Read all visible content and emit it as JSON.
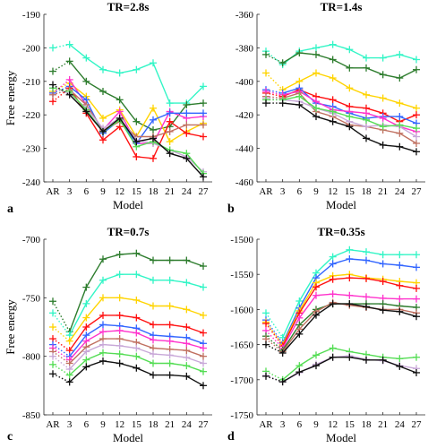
{
  "figure": {
    "title": "",
    "caption": ""
  },
  "chart_data": [
    {
      "type": "line",
      "panel_label": "a",
      "title": "TR=2.8s",
      "xlabel": "Model",
      "ylabel": "Free energy",
      "categories": [
        "AR",
        "3",
        "6",
        "9",
        "12",
        "15",
        "18",
        "21",
        "24",
        "27"
      ],
      "ylim": [
        -240,
        -190
      ],
      "yticks": [
        -240,
        -230,
        -220,
        -210,
        -200,
        -190
      ],
      "grid": false,
      "legend": "none",
      "ar_link": "dotted",
      "series": [
        {
          "color": "#33f5c6",
          "values": [
            -200,
            -199,
            -203,
            -206.5,
            -207.5,
            -206.5,
            -204.5,
            -216.5,
            -216.5,
            -211.5
          ]
        },
        {
          "color": "#2e7d2e",
          "values": [
            -207,
            -204,
            -210,
            -213,
            -215.5,
            -222,
            -224.5,
            -223.5,
            -217,
            -216.5
          ]
        },
        {
          "color": "#ffd400",
          "values": [
            -213,
            -210.5,
            -214.5,
            -221,
            -218.5,
            -226.5,
            -218,
            -228,
            -225,
            -222.5
          ]
        },
        {
          "color": "#ff33cc",
          "values": [
            -213.5,
            -209.5,
            -217,
            -224.5,
            -219,
            -228.5,
            -228.5,
            -219,
            -221,
            -220.5
          ]
        },
        {
          "color": "#3366ff",
          "values": [
            -213.5,
            -211.5,
            -215.5,
            -225.5,
            -221.5,
            -228.5,
            -221.5,
            -219.5,
            -219.5,
            -219.5
          ]
        },
        {
          "color": "#ff1111",
          "values": [
            -216,
            -212,
            -219.5,
            -227.5,
            -223.5,
            -232.5,
            -233,
            -222,
            -225.5,
            -226.5
          ]
        },
        {
          "color": "#c07060",
          "values": [
            -214,
            -212.5,
            -217,
            -224.5,
            -222,
            -226.5,
            -226.5,
            -225,
            -223,
            -223
          ]
        },
        {
          "color": "#c8a8d8",
          "values": [
            -212,
            -213.5,
            -218,
            -224,
            -221,
            -227.5,
            -228.5,
            -230.5,
            -232.5,
            -237
          ]
        },
        {
          "color": "#55dd55",
          "values": [
            -212,
            -213,
            -218.5,
            -225,
            -221.5,
            -229.5,
            -228,
            -230.5,
            -231.5,
            -237.5
          ]
        },
        {
          "color": "#111111",
          "values": [
            -211,
            -214,
            -219,
            -225,
            -221,
            -228,
            -227,
            -231.5,
            -233,
            -238.5
          ]
        }
      ]
    },
    {
      "type": "line",
      "panel_label": "b",
      "title": "TR=1.4s",
      "xlabel": "Model",
      "ylabel": "",
      "categories": [
        "AR",
        "3",
        "6",
        "9",
        "12",
        "15",
        "18",
        "21",
        "24",
        "27"
      ],
      "ylim": [
        -460,
        -360
      ],
      "yticks": [
        -460,
        -440,
        -420,
        -400,
        -380,
        -360
      ],
      "grid": false,
      "legend": "none",
      "ar_link": "dotted",
      "series": [
        {
          "color": "#33f5c6",
          "values": [
            -382,
            -390,
            -382,
            -380,
            -378,
            -381,
            -386,
            -386,
            -384,
            -387
          ]
        },
        {
          "color": "#2e7d2e",
          "values": [
            -384,
            -389,
            -383,
            -384,
            -387,
            -392,
            -392,
            -396,
            -398,
            -393
          ]
        },
        {
          "color": "#ffd400",
          "values": [
            -395,
            -405,
            -400,
            -395,
            -398,
            -404,
            -408,
            -410,
            -413,
            -416
          ]
        },
        {
          "color": "#ff1111",
          "values": [
            -407,
            -409,
            -405,
            -409,
            -411,
            -415,
            -416,
            -419,
            -424,
            -420
          ]
        },
        {
          "color": "#3366ff",
          "values": [
            -405,
            -407,
            -404,
            -413,
            -415,
            -419,
            -422,
            -421,
            -421,
            -425
          ]
        },
        {
          "color": "#ff33cc",
          "values": [
            -406,
            -408,
            -406,
            -412,
            -417,
            -418,
            -419,
            -422,
            -427,
            -430
          ]
        },
        {
          "color": "#c07060",
          "values": [
            -409,
            -410,
            -407,
            -418,
            -421,
            -426,
            -427,
            -429,
            -431,
            -437
          ]
        },
        {
          "color": "#c8a8d8",
          "values": [
            -410,
            -411,
            -412,
            -416,
            -419,
            -424,
            -427,
            -426,
            -427,
            -433
          ]
        },
        {
          "color": "#55dd55",
          "values": [
            -411,
            -411,
            -409,
            -416,
            -418,
            -421,
            -423,
            -427,
            -426,
            -428
          ]
        },
        {
          "color": "#111111",
          "values": [
            -413,
            -413,
            -414,
            -421,
            -424,
            -427,
            -434,
            -438,
            -439,
            -442
          ]
        }
      ]
    },
    {
      "type": "line",
      "panel_label": "c",
      "title": "TR=0.7s",
      "xlabel": "Model",
      "ylabel": "Free energy",
      "categories": [
        "AR",
        "3",
        "6",
        "9",
        "12",
        "15",
        "18",
        "21",
        "24",
        "27"
      ],
      "ylim": [
        -850,
        -700
      ],
      "yticks": [
        -850,
        -800,
        -750,
        -700
      ],
      "grid": false,
      "legend": "none",
      "ar_link": "dotted",
      "series": [
        {
          "color": "#2e7d2e",
          "values": [
            -753,
            -779,
            -741,
            -717,
            -713,
            -712,
            -718,
            -718,
            -718,
            -723
          ]
        },
        {
          "color": "#33f5c6",
          "values": [
            -763,
            -782,
            -755,
            -735,
            -730,
            -730,
            -735,
            -735,
            -737,
            -741
          ]
        },
        {
          "color": "#ffd400",
          "values": [
            -775,
            -787,
            -767,
            -750,
            -750,
            -752,
            -757,
            -757,
            -760,
            -765
          ]
        },
        {
          "color": "#ff1111",
          "values": [
            -785,
            -795,
            -775,
            -765,
            -765,
            -767,
            -773,
            -773,
            -775,
            -780
          ]
        },
        {
          "color": "#3366ff",
          "values": [
            -790,
            -800,
            -782,
            -773,
            -774,
            -776,
            -782,
            -783,
            -784,
            -789
          ]
        },
        {
          "color": "#ff33cc",
          "values": [
            -793,
            -803,
            -787,
            -779,
            -778,
            -780,
            -786,
            -787,
            -789,
            -793
          ]
        },
        {
          "color": "#c07060",
          "values": [
            -796,
            -806,
            -792,
            -785,
            -785,
            -788,
            -793,
            -794,
            -795,
            -800
          ]
        },
        {
          "color": "#c8a8d8",
          "values": [
            -800,
            -811,
            -796,
            -790,
            -791,
            -793,
            -798,
            -799,
            -801,
            -806
          ]
        },
        {
          "color": "#55dd55",
          "values": [
            -807,
            -816,
            -803,
            -797,
            -798,
            -800,
            -806,
            -806,
            -808,
            -813
          ]
        },
        {
          "color": "#111111",
          "values": [
            -815,
            -822,
            -809,
            -804,
            -806,
            -810,
            -816,
            -816,
            -817,
            -825
          ]
        }
      ]
    },
    {
      "type": "line",
      "panel_label": "d",
      "title": "TR=0.35s",
      "xlabel": "Model",
      "ylabel": "",
      "categories": [
        "AR",
        "3",
        "6",
        "9",
        "12",
        "15",
        "18",
        "21",
        "24",
        "27"
      ],
      "ylim": [
        -1750,
        -1500
      ],
      "yticks": [
        -1750,
        -1700,
        -1650,
        -1600,
        -1550,
        -1500
      ],
      "grid": false,
      "legend": "none",
      "ar_link": "dotted",
      "series": [
        {
          "color": "#33f5c6",
          "values": [
            -1605,
            -1640,
            -1588,
            -1548,
            -1525,
            -1515,
            -1518,
            -1522,
            -1522,
            -1522
          ]
        },
        {
          "color": "#3366ff",
          "values": [
            -1615,
            -1648,
            -1598,
            -1555,
            -1535,
            -1528,
            -1530,
            -1535,
            -1537,
            -1540
          ]
        },
        {
          "color": "#ffd400",
          "values": [
            -1618,
            -1650,
            -1602,
            -1562,
            -1552,
            -1550,
            -1555,
            -1557,
            -1560,
            -1562
          ]
        },
        {
          "color": "#ff1111",
          "values": [
            -1620,
            -1652,
            -1605,
            -1568,
            -1557,
            -1555,
            -1556,
            -1560,
            -1566,
            -1570
          ]
        },
        {
          "color": "#ff33cc",
          "values": [
            -1630,
            -1655,
            -1612,
            -1580,
            -1578,
            -1580,
            -1582,
            -1584,
            -1585,
            -1585
          ]
        },
        {
          "color": "#2e7d2e",
          "values": [
            -1638,
            -1658,
            -1622,
            -1600,
            -1592,
            -1592,
            -1592,
            -1592,
            -1595,
            -1597
          ]
        },
        {
          "color": "#c07060",
          "values": [
            -1642,
            -1660,
            -1628,
            -1603,
            -1590,
            -1594,
            -1597,
            -1600,
            -1600,
            -1605
          ]
        },
        {
          "color": "#111111",
          "values": [
            -1650,
            -1662,
            -1635,
            -1608,
            -1592,
            -1592,
            -1596,
            -1601,
            -1603,
            -1610
          ]
        },
        {
          "color": "#55dd55",
          "values": [
            -1688,
            -1700,
            -1680,
            -1665,
            -1655,
            -1660,
            -1664,
            -1668,
            -1670,
            -1668
          ]
        },
        {
          "color": "#c8a8d8",
          "values": [
            -1694,
            -1703,
            -1690,
            -1678,
            -1668,
            -1666,
            -1671,
            -1673,
            -1680,
            -1684
          ]
        },
        {
          "color": "#111111",
          "values": [
            -1695,
            -1703,
            -1689,
            -1680,
            -1668,
            -1668,
            -1672,
            -1672,
            -1681,
            -1690
          ]
        }
      ]
    }
  ]
}
